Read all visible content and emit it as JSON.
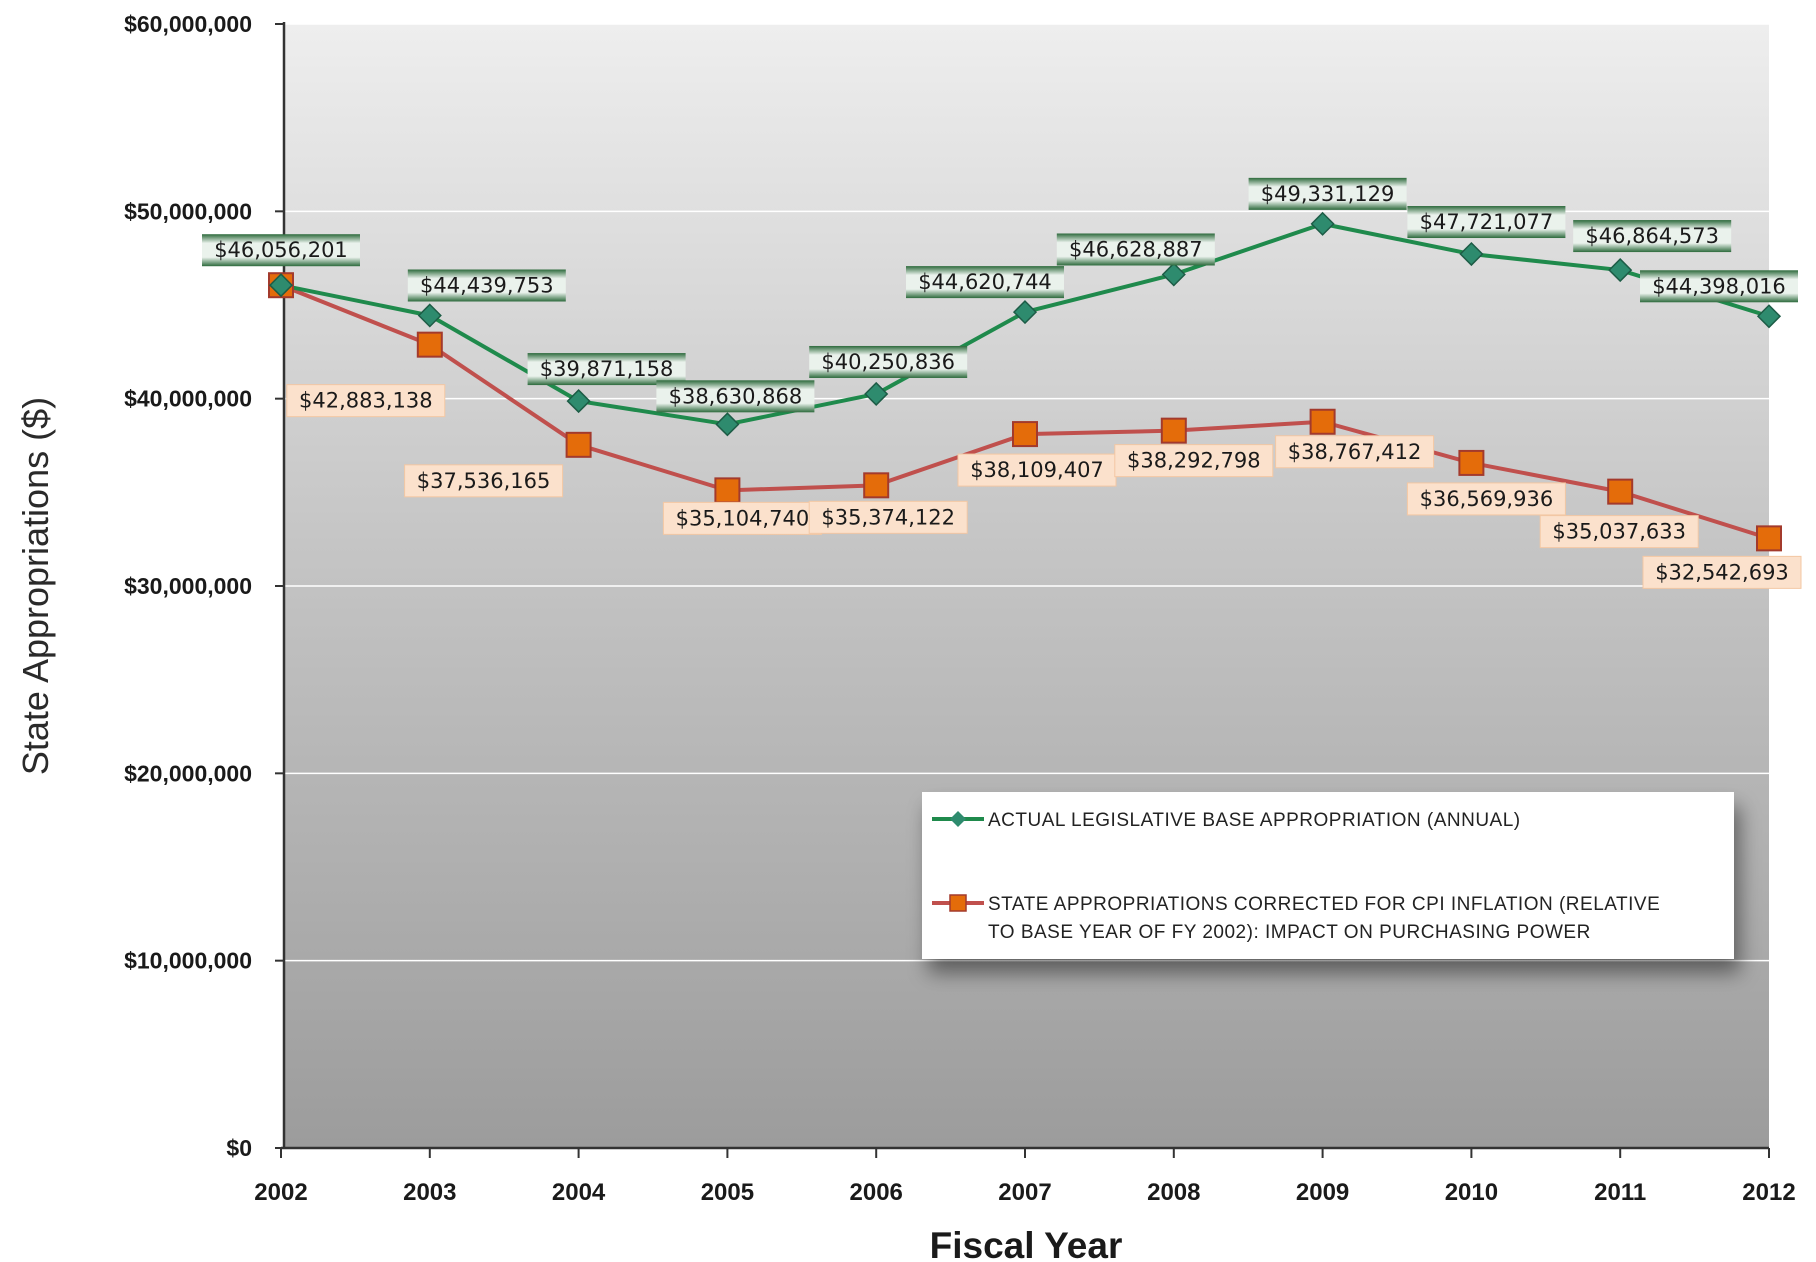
{
  "chart_data": {
    "type": "line",
    "title": "",
    "xlabel": "Fiscal Year",
    "ylabel": "State Appropriations ($)",
    "ylim": [
      0,
      60000000
    ],
    "yticks": [
      0,
      10000000,
      20000000,
      30000000,
      40000000,
      50000000,
      60000000
    ],
    "ytick_labels": [
      "$0",
      "$10,000,000",
      "$20,000,000",
      "$30,000,000",
      "$40,000,000",
      "$50,000,000",
      "$60,000,000"
    ],
    "categories": [
      "2002",
      "2003",
      "2004",
      "2005",
      "2006",
      "2007",
      "2008",
      "2009",
      "2010",
      "2011",
      "2012"
    ],
    "grid": true,
    "legend_position": "lower-right",
    "series": [
      {
        "name": "ACTUAL LEGISLATIVE BASE APPROPRIATION (ANNUAL)",
        "legend_lines": [
          "ACTUAL LEGISLATIVE BASE APPROPRIATION (ANNUAL)"
        ],
        "color": "#1f8a4c",
        "marker": "diamond",
        "values": [
          46056201,
          44439753,
          39871158,
          38630868,
          40250836,
          44620744,
          46628887,
          49331129,
          47721077,
          46864573,
          44398016
        ],
        "labels": [
          "$46,056,201",
          "$44,439,753",
          "$39,871,158",
          "$38,630,868",
          "$40,250,836",
          "$44,620,744",
          "$46,628,887",
          "$49,331,129",
          "$47,721,077",
          "$46,864,573",
          "$44,398,016"
        ]
      },
      {
        "name": "STATE APPROPRIATIONS CORRECTED FOR CPI INFLATION (RELATIVE TO BASE YEAR OF FY 2002): IMPACT ON PURCHASING POWER",
        "legend_lines": [
          "STATE APPROPRIATIONS CORRECTED FOR CPI INFLATION (RELATIVE",
          "TO BASE YEAR OF FY 2002): IMPACT ON PURCHASING POWER"
        ],
        "color": "#c0504d",
        "marker": "square",
        "values": [
          46056201,
          42883138,
          37536165,
          35104740,
          35374122,
          38109407,
          38292798,
          38767412,
          36569936,
          35037633,
          32542693
        ],
        "labels": [
          "",
          "$42,883,138",
          "$37,536,165",
          "$35,104,740",
          "$35,374,122",
          "$38,109,407",
          "$38,292,798",
          "$38,767,412",
          "$36,569,936",
          "$35,037,633",
          "$32,542,693"
        ]
      }
    ]
  },
  "colors": {
    "actual_line": "#1f8a4c",
    "actual_marker": "#2e8b6e",
    "cpi_line": "#c0504d",
    "cpi_marker": "#e46c0a",
    "green_label_bg": "#2f6e3f",
    "orange_label_bg": "#fbe1cc"
  }
}
